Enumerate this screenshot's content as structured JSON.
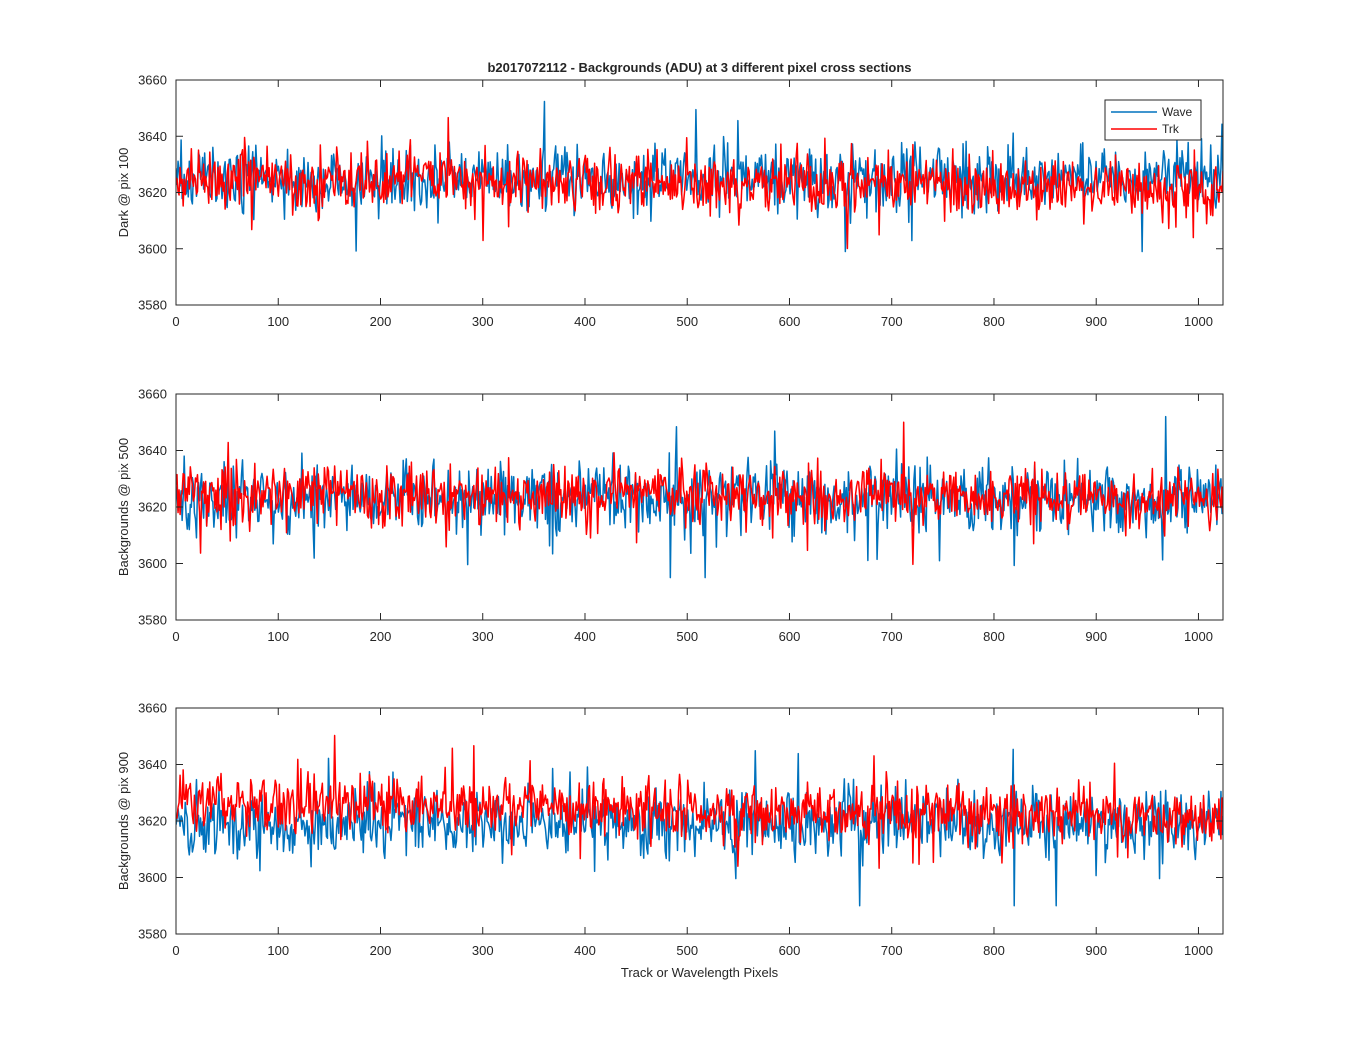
{
  "chart_data": [
    {
      "type": "line",
      "title": "b2017072112 - Backgrounds (ADU) at 3 different pixel cross sections",
      "xlabel": "",
      "ylabel": "Dark @ pix 100",
      "xlim": [
        0,
        1024
      ],
      "ylim": [
        3580,
        3660
      ],
      "xticks": [
        0,
        100,
        200,
        300,
        400,
        500,
        600,
        700,
        800,
        900,
        1000
      ],
      "yticks": [
        3580,
        3600,
        3620,
        3640,
        3660
      ],
      "grid": false,
      "legend": {
        "position": "top-right",
        "entries": [
          "Wave",
          "Trk"
        ]
      },
      "series": [
        {
          "name": "Wave",
          "color": "#0072BD",
          "points": 1024,
          "mean": 3625,
          "std": 7.5,
          "min": 3599,
          "max": 3654
        },
        {
          "name": "Trk",
          "color": "#FF0000",
          "points": 1024,
          "mean": 3623,
          "std": 7,
          "min": 3592,
          "max": 3649,
          "trend": -4
        }
      ]
    },
    {
      "type": "line",
      "title": "",
      "xlabel": "",
      "ylabel": "Backgrounds @ pix 500",
      "xlim": [
        0,
        1024
      ],
      "ylim": [
        3580,
        3660
      ],
      "xticks": [
        0,
        100,
        200,
        300,
        400,
        500,
        600,
        700,
        800,
        900,
        1000
      ],
      "yticks": [
        3580,
        3600,
        3620,
        3640,
        3660
      ],
      "grid": false,
      "series": [
        {
          "name": "Wave",
          "color": "#0072BD",
          "points": 1024,
          "mean": 3623,
          "std": 8,
          "min": 3595,
          "max": 3652
        },
        {
          "name": "Trk",
          "color": "#FF0000",
          "points": 1024,
          "mean": 3624,
          "std": 7,
          "min": 3597,
          "max": 3650,
          "trend": -3
        }
      ]
    },
    {
      "type": "line",
      "title": "",
      "xlabel": "Track or Wavelength Pixels",
      "ylabel": "Backgrounds @ pix 900",
      "xlim": [
        0,
        1024
      ],
      "ylim": [
        3580,
        3660
      ],
      "xticks": [
        0,
        100,
        200,
        300,
        400,
        500,
        600,
        700,
        800,
        900,
        1000
      ],
      "yticks": [
        3580,
        3600,
        3620,
        3640,
        3660
      ],
      "grid": false,
      "series": [
        {
          "name": "Wave",
          "color": "#0072BD",
          "points": 1024,
          "mean": 3619,
          "std": 7.5,
          "min": 3590,
          "max": 3655
        },
        {
          "name": "Trk",
          "color": "#FF0000",
          "points": 1024,
          "mean": 3624,
          "std": 7,
          "min": 3594,
          "max": 3652,
          "trend": -6
        }
      ]
    }
  ]
}
